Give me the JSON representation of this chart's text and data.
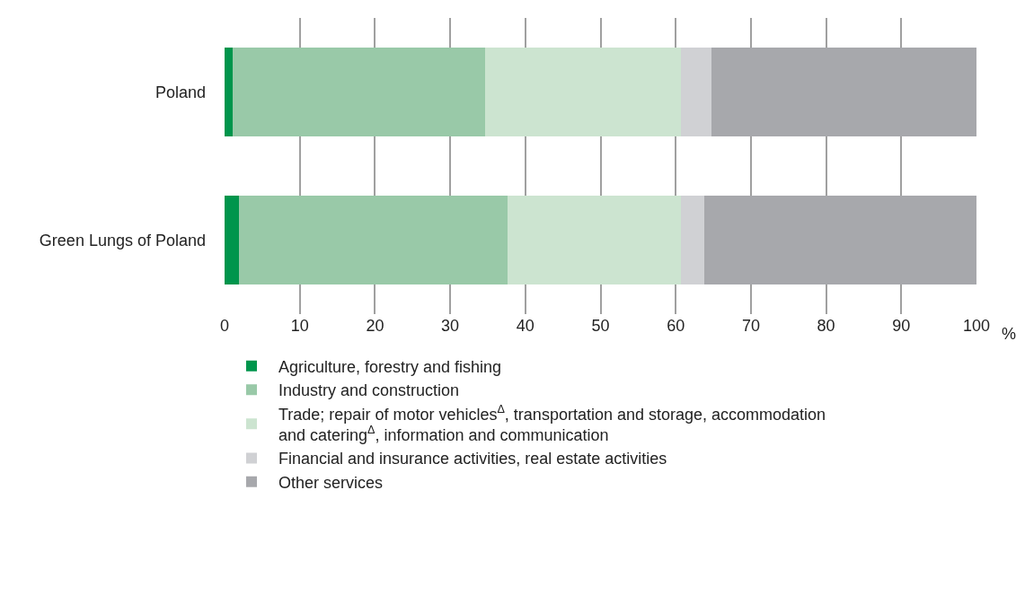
{
  "chart_data": {
    "type": "bar",
    "orientation": "horizontal",
    "stacked": true,
    "categories": [
      "Poland",
      "Green Lungs of Poland"
    ],
    "series": [
      {
        "name": "Agriculture, forestry and fishing",
        "color": "#00954c",
        "values": [
          1.1,
          1.9
        ]
      },
      {
        "name": "Industry and construction",
        "color": "#99c9a8",
        "values": [
          33.5,
          35.7
        ]
      },
      {
        "name": "Trade; repair of motor vehicles$^{Δ}$, transportation and storage, accommodation\nand catering$^{Δ}$, information and communication",
        "color": "#cce4d0",
        "values": [
          26.1,
          23.1
        ]
      },
      {
        "name": "Financial and insurance activities, real estate activities",
        "color": "#d0d1d4",
        "values": [
          4.1,
          3.1
        ]
      },
      {
        "name": "Other services",
        "color": "#a7a8ac",
        "values": [
          35.2,
          36.2
        ]
      }
    ],
    "xlabel": "%",
    "xlim": [
      0,
      100
    ],
    "xticks": [
      0,
      10,
      20,
      30,
      40,
      50,
      60,
      70,
      80,
      90,
      100
    ],
    "grid": "x",
    "legend": "bottom"
  }
}
